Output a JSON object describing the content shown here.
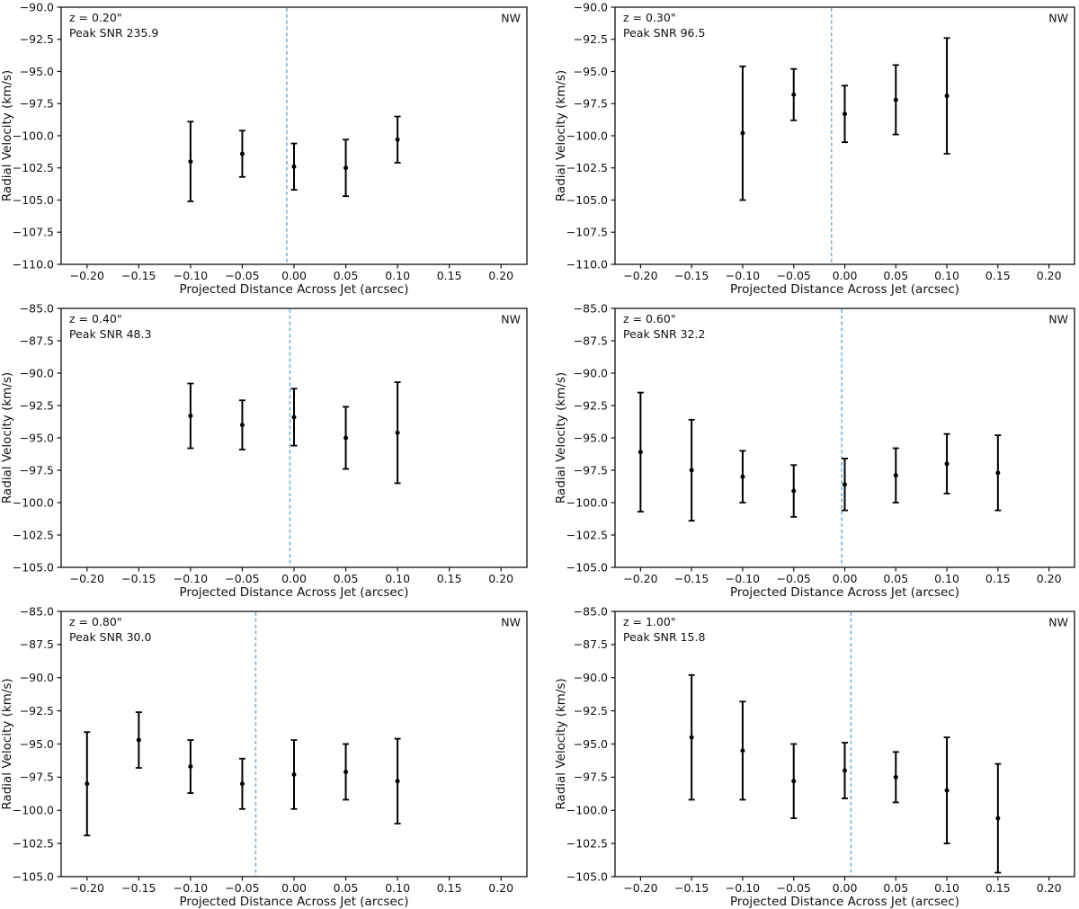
{
  "figure": {
    "background": "#ffffff",
    "text_color": "#111111",
    "data_color": "#000000",
    "jet_axis_color": "#79b2dc",
    "xlabel": "Projected Distance Across Jet (arcsec)",
    "ylabel": "Radial Velocity (km/s)",
    "corner_label": "NW"
  },
  "chart_data": [
    {
      "type": "scatter",
      "position": "top-left",
      "annotations": {
        "z": "z = 0.20\"",
        "peak_snr": "Peak SNR 235.9",
        "corner": "NW"
      },
      "xlabel": "Projected Distance Across Jet (arcsec)",
      "ylabel": "Radial Velocity (km/s)",
      "xlim": [
        -0.225,
        0.225
      ],
      "ylim": [
        -110.0,
        -90.0
      ],
      "xticks": [
        -0.2,
        -0.15,
        -0.1,
        -0.05,
        0.0,
        0.05,
        0.1,
        0.15,
        0.2
      ],
      "yticks": [
        -110.0,
        -107.5,
        -105.0,
        -102.5,
        -100.0,
        -97.5,
        -95.0,
        -92.5,
        -90.0
      ],
      "jet_axis_x": -0.007,
      "points": [
        {
          "x": -0.1,
          "y": -102.0,
          "yerr": 3.1
        },
        {
          "x": -0.05,
          "y": -101.4,
          "yerr": 1.8
        },
        {
          "x": 0.0,
          "y": -102.4,
          "yerr": 1.8
        },
        {
          "x": 0.05,
          "y": -102.5,
          "yerr": 2.2
        },
        {
          "x": 0.1,
          "y": -100.3,
          "yerr": 1.8
        }
      ]
    },
    {
      "type": "scatter",
      "position": "top-right",
      "annotations": {
        "z": "z = 0.30\"",
        "peak_snr": "Peak SNR 96.5",
        "corner": "NW"
      },
      "xlabel": "Projected Distance Across Jet (arcsec)",
      "ylabel": "Radial Velocity (km/s)",
      "xlim": [
        -0.225,
        0.225
      ],
      "ylim": [
        -110.0,
        -90.0
      ],
      "xticks": [
        -0.2,
        -0.15,
        -0.1,
        -0.05,
        0.0,
        0.05,
        0.1,
        0.15,
        0.2
      ],
      "yticks": [
        -110.0,
        -107.5,
        -105.0,
        -102.5,
        -100.0,
        -97.5,
        -95.0,
        -92.5,
        -90.0
      ],
      "jet_axis_x": -0.013,
      "points": [
        {
          "x": -0.1,
          "y": -99.8,
          "yerr": 5.2
        },
        {
          "x": -0.05,
          "y": -96.8,
          "yerr": 2.0
        },
        {
          "x": 0.0,
          "y": -98.3,
          "yerr": 2.2
        },
        {
          "x": 0.05,
          "y": -97.2,
          "yerr": 2.7
        },
        {
          "x": 0.1,
          "y": -96.9,
          "yerr": 4.5
        }
      ]
    },
    {
      "type": "scatter",
      "position": "middle-left",
      "annotations": {
        "z": "z = 0.40\"",
        "peak_snr": "Peak SNR 48.3",
        "corner": "NW"
      },
      "xlabel": "Projected Distance Across Jet (arcsec)",
      "ylabel": "Radial Velocity (km/s)",
      "xlim": [
        -0.225,
        0.225
      ],
      "ylim": [
        -105.0,
        -85.0
      ],
      "xticks": [
        -0.2,
        -0.15,
        -0.1,
        -0.05,
        0.0,
        0.05,
        0.1,
        0.15,
        0.2
      ],
      "yticks": [
        -105.0,
        -102.5,
        -100.0,
        -97.5,
        -95.0,
        -92.5,
        -90.0,
        -87.5,
        -85.0
      ],
      "jet_axis_x": -0.004,
      "points": [
        {
          "x": -0.1,
          "y": -93.3,
          "yerr": 2.5
        },
        {
          "x": -0.05,
          "y": -94.0,
          "yerr": 1.9
        },
        {
          "x": 0.0,
          "y": -93.4,
          "yerr": 2.2
        },
        {
          "x": 0.05,
          "y": -95.0,
          "yerr": 2.4
        },
        {
          "x": 0.1,
          "y": -94.6,
          "yerr": 3.9
        }
      ]
    },
    {
      "type": "scatter",
      "position": "middle-right",
      "annotations": {
        "z": "z = 0.60\"",
        "peak_snr": "Peak SNR 32.2",
        "corner": "NW"
      },
      "xlabel": "Projected Distance Across Jet (arcsec)",
      "ylabel": "Radial Velocity (km/s)",
      "xlim": [
        -0.225,
        0.225
      ],
      "ylim": [
        -105.0,
        -85.0
      ],
      "xticks": [
        -0.2,
        -0.15,
        -0.1,
        -0.05,
        0.0,
        0.05,
        0.1,
        0.15,
        0.2
      ],
      "yticks": [
        -105.0,
        -102.5,
        -100.0,
        -97.5,
        -95.0,
        -92.5,
        -90.0,
        -87.5,
        -85.0
      ],
      "jet_axis_x": -0.003,
      "points": [
        {
          "x": -0.2,
          "y": -96.1,
          "yerr": 4.6
        },
        {
          "x": -0.15,
          "y": -97.5,
          "yerr": 3.9
        },
        {
          "x": -0.1,
          "y": -98.0,
          "yerr": 2.0
        },
        {
          "x": -0.05,
          "y": -99.1,
          "yerr": 2.0
        },
        {
          "x": 0.0,
          "y": -98.6,
          "yerr": 2.0
        },
        {
          "x": 0.05,
          "y": -97.9,
          "yerr": 2.1
        },
        {
          "x": 0.1,
          "y": -97.0,
          "yerr": 2.3
        },
        {
          "x": 0.15,
          "y": -97.7,
          "yerr": 2.9
        }
      ]
    },
    {
      "type": "scatter",
      "position": "bottom-left",
      "annotations": {
        "z": "z = 0.80\"",
        "peak_snr": "Peak SNR 30.0",
        "corner": "NW"
      },
      "xlabel": "Projected Distance Across Jet (arcsec)",
      "ylabel": "Radial Velocity (km/s)",
      "xlim": [
        -0.225,
        0.225
      ],
      "ylim": [
        -105.0,
        -85.0
      ],
      "xticks": [
        -0.2,
        -0.15,
        -0.1,
        -0.05,
        0.0,
        0.05,
        0.1,
        0.15,
        0.2
      ],
      "yticks": [
        -105.0,
        -102.5,
        -100.0,
        -97.5,
        -95.0,
        -92.5,
        -90.0,
        -87.5,
        -85.0
      ],
      "jet_axis_x": -0.037,
      "points": [
        {
          "x": -0.2,
          "y": -98.0,
          "yerr": 3.9
        },
        {
          "x": -0.15,
          "y": -94.7,
          "yerr": 2.1
        },
        {
          "x": -0.1,
          "y": -96.7,
          "yerr": 2.0
        },
        {
          "x": -0.05,
          "y": -98.0,
          "yerr": 1.9
        },
        {
          "x": 0.0,
          "y": -97.3,
          "yerr": 2.6
        },
        {
          "x": 0.05,
          "y": -97.1,
          "yerr": 2.1
        },
        {
          "x": 0.1,
          "y": -97.8,
          "yerr": 3.2
        }
      ]
    },
    {
      "type": "scatter",
      "position": "bottom-right",
      "annotations": {
        "z": "z = 1.00\"",
        "peak_snr": "Peak SNR 15.8",
        "corner": "NW"
      },
      "xlabel": "Projected Distance Across Jet (arcsec)",
      "ylabel": "Radial Velocity (km/s)",
      "xlim": [
        -0.225,
        0.225
      ],
      "ylim": [
        -105.0,
        -85.0
      ],
      "xticks": [
        -0.2,
        -0.15,
        -0.1,
        -0.05,
        0.0,
        0.05,
        0.1,
        0.15,
        0.2
      ],
      "yticks": [
        -105.0,
        -102.5,
        -100.0,
        -97.5,
        -95.0,
        -92.5,
        -90.0,
        -87.5,
        -85.0
      ],
      "jet_axis_x": 0.006,
      "points": [
        {
          "x": -0.15,
          "y": -94.5,
          "yerr": 4.7
        },
        {
          "x": -0.1,
          "y": -95.5,
          "yerr": 3.7
        },
        {
          "x": -0.05,
          "y": -97.8,
          "yerr": 2.8
        },
        {
          "x": 0.0,
          "y": -97.0,
          "yerr": 2.1
        },
        {
          "x": 0.05,
          "y": -97.5,
          "yerr": 1.9
        },
        {
          "x": 0.1,
          "y": -98.5,
          "yerr": 4.0
        },
        {
          "x": 0.15,
          "y": -100.6,
          "yerr": 4.1
        }
      ]
    }
  ]
}
